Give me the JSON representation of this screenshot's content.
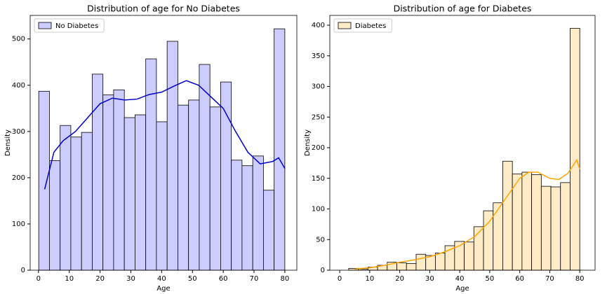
{
  "chart_data": [
    {
      "type": "histogram",
      "title": "Distribution of age for No Diabetes",
      "xlabel": "Age",
      "ylabel": "Density",
      "xlim": [
        -2.7,
        83.9
      ],
      "ylim": [
        0,
        551
      ],
      "xticks": [
        0,
        10,
        20,
        30,
        40,
        50,
        60,
        70,
        80
      ],
      "yticks": [
        0,
        100,
        200,
        300,
        400,
        500
      ],
      "legend": "upper left",
      "series": [
        {
          "name": "No Diabetes",
          "color": "#ccccff",
          "edgecolor": "#000000",
          "bins": [
            0.08,
            3.55,
            7.03,
            10.5,
            13.98,
            17.45,
            20.93,
            24.4,
            27.88,
            31.35,
            34.83,
            38.3,
            41.78,
            45.25,
            48.73,
            52.2,
            55.68,
            59.15,
            62.63,
            66.1,
            69.58,
            73.05,
            76.53,
            80.0
          ],
          "values": [
            387,
            237,
            313,
            288,
            298,
            424,
            379,
            390,
            330,
            336,
            457,
            321,
            495,
            357,
            368,
            445,
            353,
            407,
            238,
            226,
            247,
            173,
            522
          ]
        }
      ],
      "kde": {
        "color": "#0000cd",
        "x": [
          2,
          5,
          8,
          12,
          16,
          20,
          24,
          28,
          32,
          36,
          40,
          44,
          48,
          52,
          56,
          60,
          64,
          68,
          72,
          76,
          78,
          80
        ],
        "values": [
          175,
          255,
          280,
          300,
          330,
          360,
          372,
          368,
          370,
          380,
          385,
          398,
          410,
          400,
          375,
          350,
          300,
          255,
          230,
          235,
          243,
          220
        ]
      }
    },
    {
      "type": "histogram",
      "title": "Distribution of age for Diabetes",
      "xlabel": "Age",
      "ylabel": "Density",
      "xlim": [
        -3.3,
        85.1
      ],
      "ylim": [
        0,
        416
      ],
      "xticks": [
        0,
        10,
        20,
        30,
        40,
        50,
        60,
        70,
        80
      ],
      "yticks": [
        0,
        50,
        100,
        150,
        200,
        250,
        300,
        350,
        400
      ],
      "legend": "upper left",
      "series": [
        {
          "name": "Diabetes",
          "color": "#ffebc6",
          "edgecolor": "#000000",
          "bins": [
            3.0,
            6.21,
            9.42,
            12.63,
            15.83,
            19.04,
            22.25,
            25.46,
            28.67,
            31.88,
            35.08,
            38.29,
            41.5,
            44.71,
            47.92,
            51.13,
            54.33,
            57.54,
            60.75,
            63.96,
            67.17,
            70.38,
            73.58,
            76.79,
            80.0
          ],
          "values": [
            3,
            2,
            5,
            8,
            13,
            12,
            11,
            26,
            24,
            28,
            40,
            47,
            46,
            71,
            97,
            110,
            178,
            157,
            160,
            156,
            137,
            136,
            143,
            395
          ]
        }
      ],
      "kde": {
        "color": "#ffa500",
        "x": [
          5,
          10,
          15,
          20,
          25,
          30,
          35,
          40,
          45,
          50,
          55,
          60,
          63,
          66,
          70,
          73,
          76,
          79,
          80
        ],
        "values": [
          2,
          4,
          8,
          13,
          17,
          22,
          30,
          40,
          55,
          80,
          115,
          150,
          160,
          160,
          150,
          148,
          158,
          180,
          165
        ]
      }
    }
  ]
}
